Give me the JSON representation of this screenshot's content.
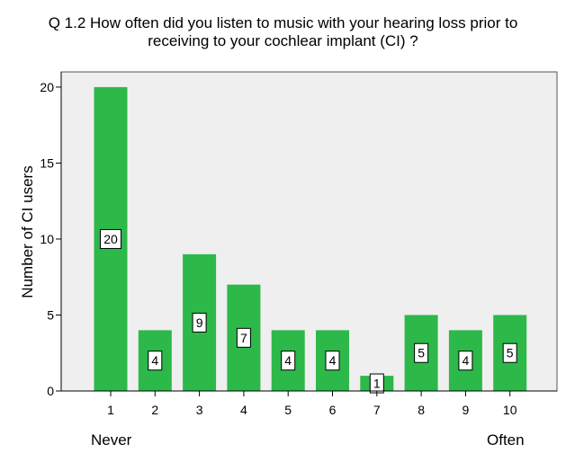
{
  "title_lines": [
    "Q 1.2 How often did you listen to music with your hearing loss prior to",
    "receiving to your cochlear implant (CI) ?"
  ],
  "x_end_labels": {
    "left": "Never",
    "right": "Often"
  },
  "colors": {
    "bar": "#2db84a",
    "plot_bg": "#efefef",
    "axis": "#000000"
  },
  "chart_data": {
    "type": "bar",
    "title": "Q 1.2 How often did you listen to music with your hearing loss prior to receiving to your cochlear implant (CI) ?",
    "xlabel": "",
    "ylabel": "Number of CI users",
    "categories": [
      "1",
      "2",
      "3",
      "4",
      "5",
      "6",
      "7",
      "8",
      "9",
      "10"
    ],
    "values": [
      20,
      4,
      9,
      7,
      4,
      4,
      1,
      5,
      4,
      5
    ],
    "ylim": [
      0,
      21
    ],
    "yticks": [
      0,
      5,
      10,
      15,
      20
    ],
    "data_labels": true,
    "grid": false,
    "legend": "none"
  }
}
